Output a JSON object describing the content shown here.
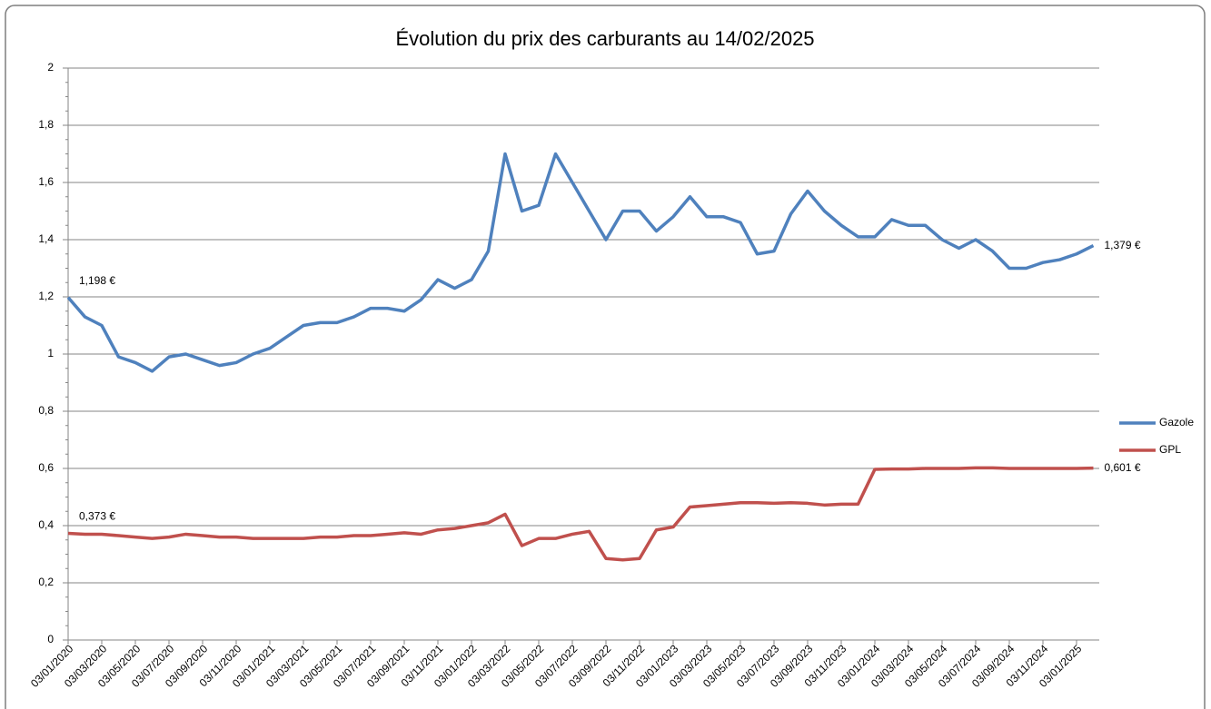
{
  "chart_data": {
    "type": "line",
    "title": "Évolution du prix des carburants au 14/02/2025",
    "categories": [
      "03/01/2020",
      null,
      "03/03/2020",
      null,
      "03/05/2020",
      null,
      "03/07/2020",
      null,
      "03/09/2020",
      null,
      "03/11/2020",
      null,
      "03/01/2021",
      null,
      "03/03/2021",
      null,
      "03/05/2021",
      null,
      "03/07/2021",
      null,
      "03/09/2021",
      null,
      "03/11/2021",
      null,
      "03/01/2022",
      null,
      "03/03/2022",
      null,
      "03/05/2022",
      null,
      "03/07/2022",
      null,
      "03/09/2022",
      null,
      "03/11/2022",
      null,
      "03/01/2023",
      null,
      "03/03/2023",
      null,
      "03/05/2023",
      null,
      "03/07/2023",
      null,
      "03/09/2023",
      null,
      "03/11/2023",
      null,
      "03/01/2024",
      null,
      "03/03/2024",
      null,
      "03/05/2024",
      null,
      "03/07/2024",
      null,
      "03/09/2024",
      null,
      "03/11/2024",
      null,
      "03/01/2025",
      null
    ],
    "series": [
      {
        "name": "Gazole",
        "color": "#4f81bd",
        "values": [
          1.198,
          1.13,
          1.1,
          0.99,
          0.97,
          0.94,
          0.99,
          1.0,
          0.98,
          0.96,
          0.97,
          1.0,
          1.02,
          1.06,
          1.1,
          1.11,
          1.11,
          1.13,
          1.16,
          1.16,
          1.15,
          1.19,
          1.26,
          1.23,
          1.26,
          1.36,
          1.7,
          1.5,
          1.52,
          1.7,
          1.6,
          1.5,
          1.4,
          1.5,
          1.5,
          1.43,
          1.48,
          1.55,
          1.48,
          1.48,
          1.46,
          1.35,
          1.36,
          1.49,
          1.57,
          1.5,
          1.45,
          1.41,
          1.41,
          1.47,
          1.45,
          1.45,
          1.4,
          1.37,
          1.4,
          1.36,
          1.3,
          1.3,
          1.32,
          1.33,
          1.35,
          1.379
        ],
        "value_labels": [
          "1,198 €",
          null,
          null,
          null,
          null,
          null,
          null,
          null,
          null,
          null,
          null,
          null,
          null,
          null,
          null,
          null,
          null,
          null,
          null,
          null,
          null,
          null,
          null,
          null,
          null,
          null,
          null,
          null,
          null,
          null,
          null,
          null,
          null,
          null,
          null,
          null,
          null,
          null,
          null,
          null,
          null,
          null,
          null,
          null,
          null,
          null,
          null,
          null,
          null,
          null,
          null,
          null,
          null,
          null,
          null,
          null,
          null,
          null,
          null,
          null,
          null,
          "1,379 €"
        ]
      },
      {
        "name": "GPL",
        "color": "#c0504d",
        "values": [
          0.373,
          0.37,
          0.37,
          0.365,
          0.36,
          0.355,
          0.36,
          0.37,
          0.365,
          0.36,
          0.36,
          0.355,
          0.355,
          0.355,
          0.355,
          0.36,
          0.36,
          0.365,
          0.365,
          0.37,
          0.375,
          0.37,
          0.385,
          0.39,
          0.4,
          0.41,
          0.44,
          0.33,
          0.355,
          0.355,
          0.37,
          0.38,
          0.285,
          0.28,
          0.285,
          0.385,
          0.395,
          0.465,
          0.47,
          0.475,
          0.48,
          0.48,
          0.478,
          0.48,
          0.478,
          0.472,
          0.475,
          0.475,
          0.597,
          0.598,
          0.598,
          0.6,
          0.6,
          0.6,
          0.602,
          0.602,
          0.6,
          0.6,
          0.6,
          0.6,
          0.6,
          0.601
        ],
        "value_labels": [
          "0,373 €",
          null,
          null,
          null,
          null,
          null,
          null,
          null,
          null,
          null,
          null,
          null,
          null,
          null,
          null,
          null,
          null,
          null,
          null,
          null,
          null,
          null,
          null,
          null,
          null,
          null,
          null,
          null,
          null,
          null,
          null,
          null,
          null,
          null,
          null,
          null,
          null,
          null,
          null,
          null,
          null,
          null,
          null,
          null,
          null,
          null,
          null,
          null,
          null,
          null,
          null,
          null,
          null,
          null,
          null,
          null,
          null,
          null,
          null,
          null,
          null,
          "0,601 €"
        ]
      }
    ],
    "ylim": [
      0,
      2
    ],
    "yticks": [
      0,
      {
        "value": 0.2,
        "label": "0,2"
      },
      {
        "value": 0.4,
        "label": "0,4"
      },
      {
        "value": 0.6,
        "label": "0,6"
      },
      {
        "value": 0.8,
        "label": "0,8"
      },
      1,
      {
        "value": 1.2,
        "label": "1,2"
      },
      {
        "value": 1.4,
        "label": "1,4"
      },
      {
        "value": 1.6,
        "label": "1,6"
      },
      {
        "value": 1.8,
        "label": "1,8"
      },
      2
    ],
    "grid": true,
    "legend": "right"
  }
}
